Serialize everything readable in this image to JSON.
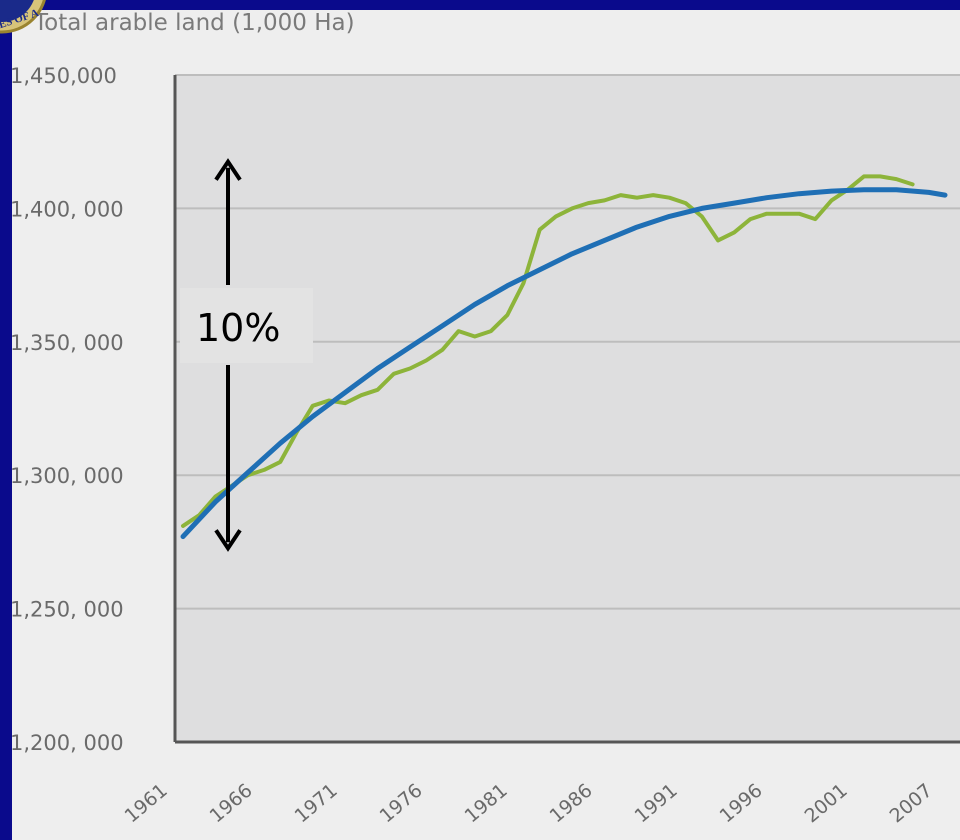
{
  "seal": {
    "text": "ES OF A"
  },
  "chart_data": {
    "type": "line",
    "title": "Total arable land (1,000 Ha)",
    "xlabel": "",
    "ylabel": "",
    "ylim": [
      1200000,
      1450000
    ],
    "xlim": [
      1961,
      2008
    ],
    "y_ticks": [
      {
        "value": 1450000,
        "label": "1,450,000"
      },
      {
        "value": 1400000,
        "label": "1,400, 000"
      },
      {
        "value": 1350000,
        "label": "1,350, 000"
      },
      {
        "value": 1300000,
        "label": "1,300, 000"
      },
      {
        "value": 1250000,
        "label": "1,250, 000"
      },
      {
        "value": 1200000,
        "label": "1,200, 000"
      }
    ],
    "x_ticks": [
      "1961",
      "1966",
      "1971",
      "1976",
      "1981",
      "1986",
      "1991",
      "1996",
      "2001",
      "2007"
    ],
    "grid": true,
    "series": [
      {
        "key": "actual",
        "color": "#8db43a",
        "x": [
          1961,
          1962,
          1963,
          1964,
          1965,
          1966,
          1967,
          1968,
          1969,
          1970,
          1971,
          1972,
          1973,
          1974,
          1975,
          1976,
          1977,
          1978,
          1979,
          1980,
          1981,
          1982,
          1983,
          1984,
          1985,
          1986,
          1987,
          1988,
          1989,
          1990,
          1991,
          1992,
          1993,
          1994,
          1995,
          1996,
          1997,
          1998,
          1999,
          2000,
          2001,
          2002,
          2003,
          2004,
          2005,
          2006
        ],
        "values": [
          1281000,
          1285000,
          1292000,
          1296000,
          1300000,
          1302000,
          1305000,
          1316000,
          1326000,
          1328000,
          1327000,
          1330000,
          1332000,
          1338000,
          1340000,
          1343000,
          1347000,
          1354000,
          1352000,
          1354000,
          1360000,
          1372000,
          1392000,
          1397000,
          1400000,
          1402000,
          1403000,
          1405000,
          1404000,
          1405000,
          1404000,
          1402000,
          1397000,
          1388000,
          1391000,
          1396000,
          1398000,
          1398000,
          1398000,
          1396000,
          1403000,
          1407000,
          1412000,
          1412000,
          1411000,
          1409000
        ]
      },
      {
        "key": "trend",
        "color": "#1f6fb5",
        "x": [
          1961,
          1963,
          1965,
          1967,
          1969,
          1971,
          1973,
          1975,
          1977,
          1979,
          1981,
          1983,
          1985,
          1987,
          1989,
          1991,
          1993,
          1995,
          1997,
          1999,
          2001,
          2003,
          2005,
          2007,
          2008
        ],
        "values": [
          1277000,
          1290000,
          1301000,
          1312000,
          1322000,
          1331000,
          1340000,
          1348000,
          1356000,
          1364000,
          1371000,
          1377000,
          1383000,
          1388000,
          1393000,
          1397000,
          1400000,
          1402000,
          1404000,
          1405500,
          1406500,
          1407000,
          1407000,
          1406000,
          1405000
        ]
      }
    ],
    "annotation": {
      "label": "10%",
      "y_from": 1282000,
      "y_to": 1410000,
      "x": 1964
    }
  }
}
